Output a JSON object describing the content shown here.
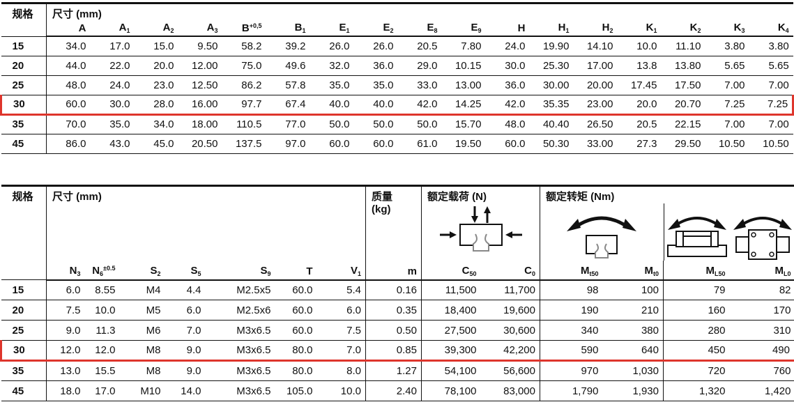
{
  "accent_red": "#de352c",
  "table1": {
    "spec_header": "规格",
    "dim_header": "尺寸 (mm)",
    "columns": [
      {
        "t": "A"
      },
      {
        "t": "A",
        "sub": "1"
      },
      {
        "t": "A",
        "sub": "2"
      },
      {
        "t": "A",
        "sub": "3"
      },
      {
        "t": "B",
        "sup": "+0,5"
      },
      {
        "t": "B",
        "sub": "1"
      },
      {
        "t": "E",
        "sub": "1"
      },
      {
        "t": "E",
        "sub": "2"
      },
      {
        "t": "E",
        "sub": "8"
      },
      {
        "t": "E",
        "sub": "9"
      },
      {
        "t": "H"
      },
      {
        "t": "H",
        "sub": "1"
      },
      {
        "t": "H",
        "sub": "2"
      },
      {
        "t": "K",
        "sub": "1"
      },
      {
        "t": "K",
        "sub": "2"
      },
      {
        "t": "K",
        "sub": "3"
      },
      {
        "t": "K",
        "sub": "4"
      }
    ],
    "rows": [
      {
        "spec": "15",
        "highlight": false,
        "values": [
          "34.0",
          "17.0",
          "15.0",
          "9.50",
          "58.2",
          "39.2",
          "26.0",
          "26.0",
          "20.5",
          "7.80",
          "24.0",
          "19.90",
          "14.10",
          "10.0",
          "11.10",
          "3.80",
          "3.80"
        ]
      },
      {
        "spec": "20",
        "highlight": false,
        "values": [
          "44.0",
          "22.0",
          "20.0",
          "12.00",
          "75.0",
          "49.6",
          "32.0",
          "36.0",
          "29.0",
          "10.15",
          "30.0",
          "25.30",
          "17.00",
          "13.8",
          "13.80",
          "5.65",
          "5.65"
        ]
      },
      {
        "spec": "25",
        "highlight": false,
        "values": [
          "48.0",
          "24.0",
          "23.0",
          "12.50",
          "86.2",
          "57.8",
          "35.0",
          "35.0",
          "33.0",
          "13.00",
          "36.0",
          "30.00",
          "20.00",
          "17.45",
          "17.50",
          "7.00",
          "7.00"
        ]
      },
      {
        "spec": "30",
        "highlight": true,
        "values": [
          "60.0",
          "30.0",
          "28.0",
          "16.00",
          "97.7",
          "67.4",
          "40.0",
          "40.0",
          "42.0",
          "14.25",
          "42.0",
          "35.35",
          "23.00",
          "20.0",
          "20.70",
          "7.25",
          "7.25"
        ]
      },
      {
        "spec": "35",
        "highlight": false,
        "values": [
          "70.0",
          "35.0",
          "34.0",
          "18.00",
          "110.5",
          "77.0",
          "50.0",
          "50.0",
          "50.0",
          "15.70",
          "48.0",
          "40.40",
          "26.50",
          "20.5",
          "22.15",
          "7.00",
          "7.00"
        ]
      },
      {
        "spec": "45",
        "highlight": false,
        "values": [
          "86.0",
          "43.0",
          "45.0",
          "20.50",
          "137.5",
          "97.0",
          "60.0",
          "60.0",
          "61.0",
          "19.50",
          "60.0",
          "50.30",
          "33.00",
          "27.3",
          "29.50",
          "10.50",
          "10.50"
        ]
      }
    ]
  },
  "table2": {
    "spec_header": "规格",
    "dim_header": "尺寸 (mm)",
    "mass_header_line1": "质量",
    "mass_header_line2": "(kg)",
    "load_header": "额定载荷 (N)",
    "torque_header": "额定转矩 (Nm)",
    "columns": {
      "dims": [
        {
          "t": "N",
          "sub": "3"
        },
        {
          "t": "N",
          "sub": "6",
          "sup": "±0.5"
        },
        {
          "t": "S",
          "sub": "2"
        },
        {
          "t": "S",
          "sub": "5"
        },
        {
          "t": "S",
          "sub": "9"
        },
        {
          "t": "T"
        },
        {
          "t": "V",
          "sub": "1"
        }
      ],
      "mass": [
        {
          "t": "m"
        }
      ],
      "load": [
        {
          "t": "C",
          "sub": "50"
        },
        {
          "t": "C",
          "sub": "0"
        }
      ],
      "torque_t": [
        {
          "t": "M",
          "sub": "t50"
        },
        {
          "t": "M",
          "sub": "t0"
        }
      ],
      "torque_l": [
        {
          "t": "M",
          "sub": "L50"
        },
        {
          "t": "M",
          "sub": "L0"
        }
      ]
    },
    "rows": [
      {
        "spec": "15",
        "highlight": false,
        "dims": [
          "6.0",
          "8.55",
          "M4",
          "4.4",
          "M2.5x5",
          "60.0",
          "5.4"
        ],
        "mass": [
          "0.16"
        ],
        "load": [
          "11,500",
          "11,700"
        ],
        "torque_t": [
          "98",
          "100"
        ],
        "torque_l": [
          "79",
          "82"
        ]
      },
      {
        "spec": "20",
        "highlight": false,
        "dims": [
          "7.5",
          "10.0",
          "M5",
          "6.0",
          "M2.5x6",
          "60.0",
          "6.0"
        ],
        "mass": [
          "0.35"
        ],
        "load": [
          "18,400",
          "19,600"
        ],
        "torque_t": [
          "190",
          "210"
        ],
        "torque_l": [
          "160",
          "170"
        ]
      },
      {
        "spec": "25",
        "highlight": false,
        "dims": [
          "9.0",
          "11.3",
          "M6",
          "7.0",
          "M3x6.5",
          "60.0",
          "7.5"
        ],
        "mass": [
          "0.50"
        ],
        "load": [
          "27,500",
          "30,600"
        ],
        "torque_t": [
          "340",
          "380"
        ],
        "torque_l": [
          "280",
          "310"
        ]
      },
      {
        "spec": "30",
        "highlight": true,
        "dims": [
          "12.0",
          "12.0",
          "M8",
          "9.0",
          "M3x6.5",
          "80.0",
          "7.0"
        ],
        "mass": [
          "0.85"
        ],
        "load": [
          "39,300",
          "42,200"
        ],
        "torque_t": [
          "590",
          "640"
        ],
        "torque_l": [
          "450",
          "490"
        ]
      },
      {
        "spec": "35",
        "highlight": false,
        "dims": [
          "13.0",
          "15.5",
          "M8",
          "9.0",
          "M3x6.5",
          "80.0",
          "8.0"
        ],
        "mass": [
          "1.27"
        ],
        "load": [
          "54,100",
          "56,600"
        ],
        "torque_t": [
          "970",
          "1,030"
        ],
        "torque_l": [
          "720",
          "760"
        ]
      },
      {
        "spec": "45",
        "highlight": false,
        "dims": [
          "18.0",
          "17.0",
          "M10",
          "14.0",
          "M3x6.5",
          "105.0",
          "10.0"
        ],
        "mass": [
          "2.40"
        ],
        "load": [
          "78,100",
          "83,000"
        ],
        "torque_t": [
          "1,790",
          "1,930"
        ],
        "torque_l": [
          "1,320",
          "1,420"
        ]
      }
    ]
  },
  "icons": {
    "load": "load-direction-icon",
    "torque_roll": "torque-roll-icon",
    "torque_side": "torque-longitudinal-side-icon",
    "torque_top": "torque-longitudinal-top-icon"
  }
}
